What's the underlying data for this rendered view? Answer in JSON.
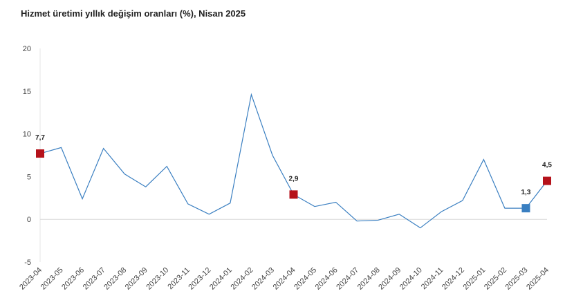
{
  "chart_data": {
    "type": "line",
    "title": "Hizmet üretimi yıllık değişim oranları (%), Nisan 2025",
    "categories": [
      "2023-04",
      "2023-05",
      "2023-06",
      "2023-07",
      "2023-08",
      "2023-09",
      "2023-10",
      "2023-11",
      "2023-12",
      "2024-01",
      "2024-02",
      "2024-03",
      "2024-04",
      "2024-05",
      "2024-06",
      "2024-07",
      "2024-08",
      "2024-09",
      "2024-10",
      "2024-11",
      "2024-12",
      "2025-01",
      "2025-02",
      "2025-03",
      "2025-04"
    ],
    "values": [
      7.7,
      8.4,
      2.4,
      8.3,
      5.3,
      3.8,
      6.2,
      1.8,
      0.6,
      1.9,
      14.6,
      7.5,
      2.9,
      1.5,
      2.0,
      -0.2,
      -0.1,
      0.6,
      -1.0,
      0.9,
      2.2,
      7.0,
      1.3,
      1.3,
      4.5
    ],
    "value_labels": [
      "7,7",
      null,
      null,
      null,
      null,
      null,
      null,
      null,
      null,
      null,
      null,
      null,
      "2,9",
      null,
      null,
      null,
      null,
      null,
      null,
      null,
      null,
      null,
      null,
      "1,3",
      "4,5"
    ],
    "marker_colors": [
      "#b5121b",
      null,
      null,
      null,
      null,
      null,
      null,
      null,
      null,
      null,
      null,
      null,
      "#b5121b",
      null,
      null,
      null,
      null,
      null,
      null,
      null,
      null,
      null,
      null,
      "#3a7fc1",
      "#b5121b"
    ],
    "color": "#3a7fc1",
    "ylim": [
      -5,
      20
    ],
    "yticks": [
      -5,
      0,
      5,
      10,
      15,
      20
    ],
    "zero_line": true
  }
}
